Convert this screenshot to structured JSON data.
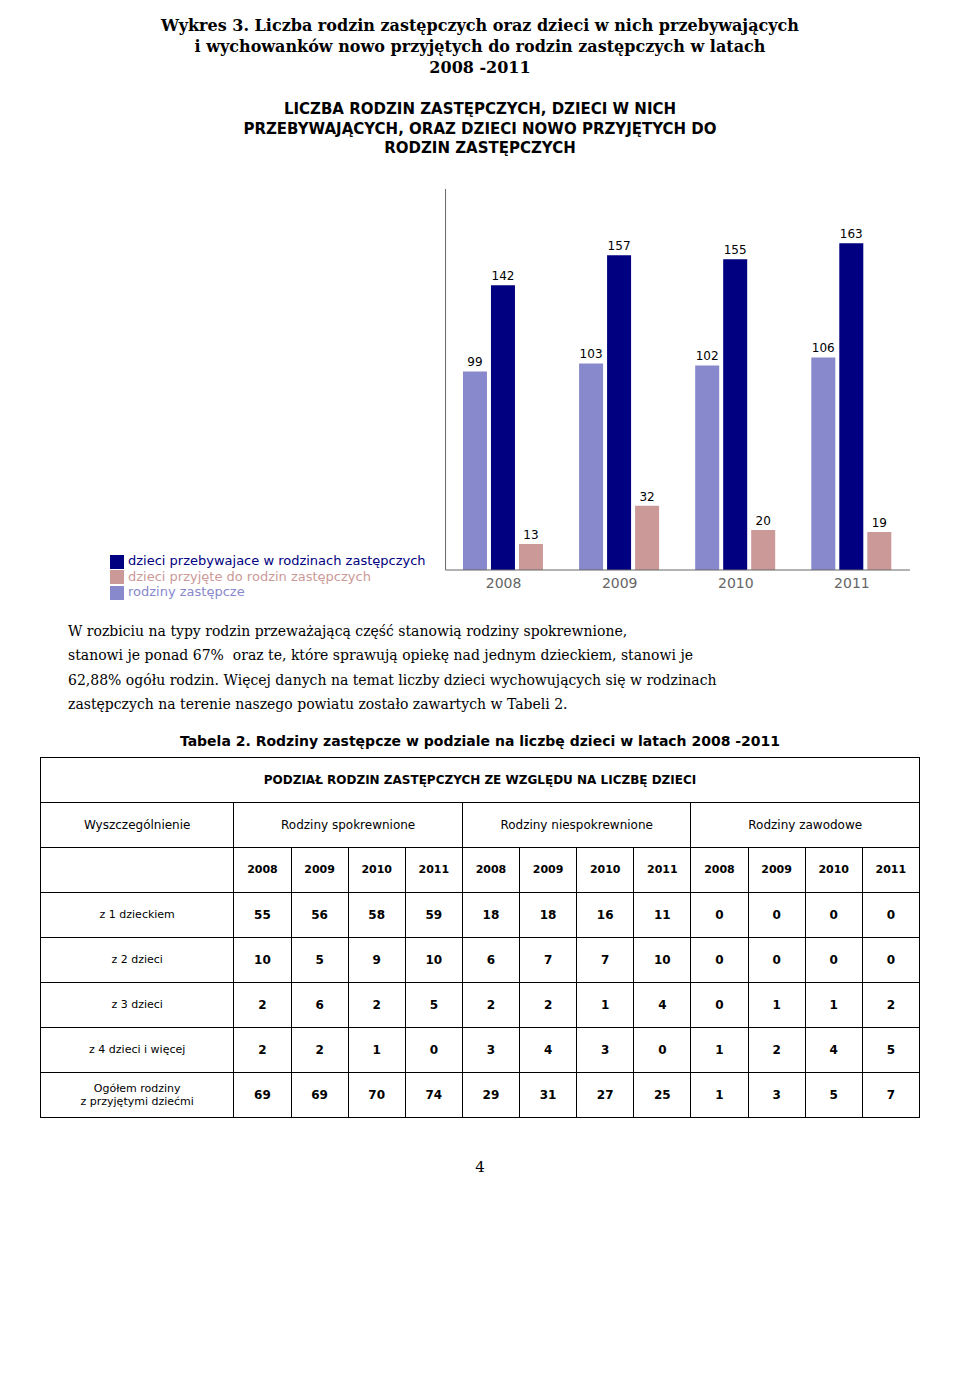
{
  "page_title": [
    "Wykres 3. Liczba rodzin zastępczych oraz dzieci w nich przebywających",
    "i wychowanków nowo przyjętych do rodzin zastępczych w latach",
    "2008 -2011"
  ],
  "chart_data": {
    "type": "bar",
    "title": "LICZBA RODZIN ZASTĘPCZYCH, DZIECI W NICH\nPRZEBYWAJĄCYCH, ORAZ DZIECI NOWO PRZYJĘTYCH DO\nRODZIN ZASTĘPCZYCH",
    "categories": [
      "2008",
      "2009",
      "2010",
      "2011"
    ],
    "series": [
      {
        "name": "rodziny zastępcze",
        "color": "#8888CC",
        "values": [
          99,
          103,
          102,
          106
        ]
      },
      {
        "name": "dzieci przebywajace w rodzinach zastępczych",
        "color": "#000080",
        "values": [
          142,
          157,
          155,
          163
        ]
      },
      {
        "name": "dzieci przyjęte do rodzin zastępczych",
        "color": "#CC9999",
        "values": [
          13,
          32,
          20,
          19
        ]
      }
    ],
    "ylim": [
      0,
      190
    ],
    "tick_labels": "x",
    "data_labels": true,
    "grid": false,
    "legend": "bottom"
  },
  "body_text": [
    "W rozbiciu na typy rodzin przeważającą część stanowią rodziny spokrewnione,",
    "stanowi je ponad 67%  oraz te, które sprawują opiekę nad jednym dzieckiem, stanowi je",
    "62,88% ogółu rodzin. Więcej danych na temat liczby dzieci wychowujących się w rodzinach",
    "zastępczych na terenie naszego powiatu zostało zawartych w Tabeli 2."
  ],
  "table": {
    "caption": "Tabela 2. Rodziny zastępcze w podziale na liczbę dzieci w latach 2008 -2011",
    "header": "PODZIAŁ RODZIN ZASTĘPCZYCH ZE WZGLĘDU NA LICZBĘ DZIECI",
    "column_groups": [
      "Wyszczególnienie",
      "Rodziny spokrewnione",
      "Rodziny niespokrewnione",
      "Rodziny zawodowe"
    ],
    "years": [
      "2008",
      "2009",
      "2010",
      "2011"
    ],
    "rows": [
      {
        "label": "z 1 dzieckiem",
        "values": [
          [
            55,
            56,
            58,
            59
          ],
          [
            18,
            18,
            16,
            11
          ],
          [
            0,
            0,
            0,
            0
          ]
        ]
      },
      {
        "label": "z 2 dzieci",
        "values": [
          [
            10,
            5,
            9,
            10
          ],
          [
            6,
            7,
            7,
            10
          ],
          [
            0,
            0,
            0,
            0
          ]
        ]
      },
      {
        "label": "z 3 dzieci",
        "values": [
          [
            2,
            6,
            2,
            5
          ],
          [
            2,
            2,
            1,
            4
          ],
          [
            0,
            1,
            1,
            2
          ]
        ]
      },
      {
        "label": "z 4 dzieci i więcej",
        "values": [
          [
            2,
            2,
            1,
            0
          ],
          [
            3,
            4,
            3,
            0
          ],
          [
            1,
            2,
            4,
            5
          ]
        ]
      },
      {
        "label": "Ogółem rodziny\nz przyjętymi dziećmi",
        "values": [
          [
            69,
            69,
            70,
            74
          ],
          [
            29,
            31,
            27,
            25
          ],
          [
            1,
            3,
            5,
            7
          ]
        ]
      }
    ]
  },
  "page_number": "4"
}
